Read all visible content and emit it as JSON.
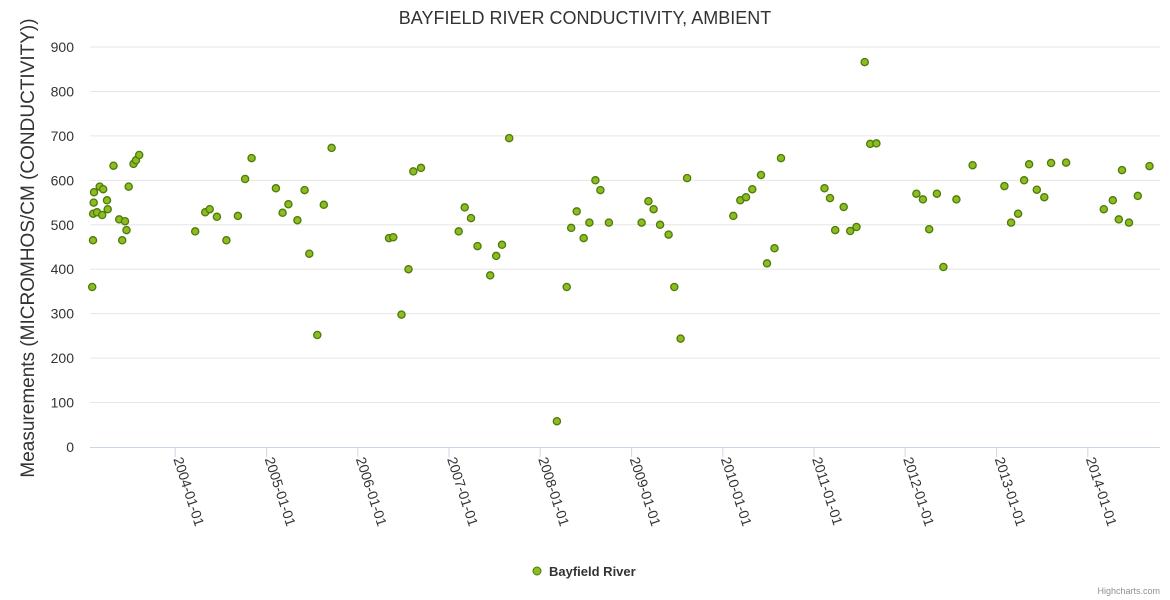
{
  "chart_data": {
    "type": "scatter",
    "title": "BAYFIELD RIVER CONDUCTIVITY, AMBIENT",
    "ylabel": "Measurements (MICROMHOS/CM (CONDUCTIVITY))",
    "xlabel": "",
    "ylim": [
      0,
      900
    ],
    "yticks": [
      0,
      100,
      200,
      300,
      400,
      500,
      600,
      700,
      800,
      900
    ],
    "xlim": [
      "2003-01-25",
      "2014-10-17"
    ],
    "xticks": [
      "2004-01-01",
      "2005-01-01",
      "2006-01-01",
      "2007-01-01",
      "2008-01-01",
      "2009-01-01",
      "2010-01-01",
      "2011-01-01",
      "2012-01-01",
      "2013-01-01",
      "2014-01-01"
    ],
    "grid": "horizontal",
    "legend_position": "bottom-center",
    "marker_color": "#8bbc21",
    "marker_stroke": "#4e7a0a",
    "series": [
      {
        "name": "Bayfield River",
        "points": [
          [
            "2003-02-03",
            360
          ],
          [
            "2003-02-06",
            465
          ],
          [
            "2003-02-07",
            525
          ],
          [
            "2003-02-09",
            550
          ],
          [
            "2003-02-10",
            573
          ],
          [
            "2003-02-22",
            528
          ],
          [
            "2003-03-05",
            586
          ],
          [
            "2003-03-15",
            522
          ],
          [
            "2003-03-19",
            580
          ],
          [
            "2003-04-03",
            555
          ],
          [
            "2003-04-06",
            535
          ],
          [
            "2003-04-29",
            633
          ],
          [
            "2003-05-22",
            512
          ],
          [
            "2003-06-03",
            465
          ],
          [
            "2003-06-14",
            508
          ],
          [
            "2003-06-20",
            488
          ],
          [
            "2003-06-29",
            586
          ],
          [
            "2003-07-18",
            637
          ],
          [
            "2003-07-28",
            645
          ],
          [
            "2003-08-10",
            657
          ],
          [
            "2004-03-21",
            485
          ],
          [
            "2004-04-30",
            528
          ],
          [
            "2004-05-18",
            535
          ],
          [
            "2004-06-16",
            518
          ],
          [
            "2004-07-24",
            465
          ],
          [
            "2004-09-08",
            520
          ],
          [
            "2004-10-07",
            603
          ],
          [
            "2004-11-02",
            650
          ],
          [
            "2005-02-07",
            582
          ],
          [
            "2005-03-06",
            527
          ],
          [
            "2005-03-29",
            546
          ],
          [
            "2005-05-04",
            510
          ],
          [
            "2005-06-02",
            578
          ],
          [
            "2005-06-21",
            435
          ],
          [
            "2005-07-23",
            252
          ],
          [
            "2005-08-18",
            545
          ],
          [
            "2005-09-18",
            673
          ],
          [
            "2006-05-06",
            470
          ],
          [
            "2006-05-23",
            472
          ],
          [
            "2006-06-25",
            298
          ],
          [
            "2006-07-23",
            400
          ],
          [
            "2006-08-11",
            620
          ],
          [
            "2006-09-11",
            628
          ],
          [
            "2007-02-09",
            485
          ],
          [
            "2007-03-05",
            539
          ],
          [
            "2007-03-30",
            515
          ],
          [
            "2007-04-25",
            452
          ],
          [
            "2007-06-15",
            386
          ],
          [
            "2007-07-09",
            430
          ],
          [
            "2007-08-01",
            455
          ],
          [
            "2007-08-30",
            695
          ],
          [
            "2008-03-08",
            58
          ],
          [
            "2008-04-16",
            360
          ],
          [
            "2008-05-04",
            493
          ],
          [
            "2008-05-26",
            530
          ],
          [
            "2008-06-23",
            470
          ],
          [
            "2008-07-16",
            505
          ],
          [
            "2008-08-09",
            600
          ],
          [
            "2008-08-29",
            578
          ],
          [
            "2008-10-02",
            505
          ],
          [
            "2009-02-10",
            505
          ],
          [
            "2009-03-09",
            553
          ],
          [
            "2009-03-30",
            535
          ],
          [
            "2009-04-25",
            500
          ],
          [
            "2009-05-29",
            478
          ],
          [
            "2009-06-21",
            360
          ],
          [
            "2009-07-16",
            244
          ],
          [
            "2009-08-11",
            605
          ],
          [
            "2010-02-12",
            520
          ],
          [
            "2010-03-12",
            555
          ],
          [
            "2010-04-04",
            562
          ],
          [
            "2010-04-29",
            580
          ],
          [
            "2010-06-03",
            612
          ],
          [
            "2010-06-27",
            413
          ],
          [
            "2010-07-27",
            447
          ],
          [
            "2010-08-22",
            650
          ],
          [
            "2011-02-12",
            582
          ],
          [
            "2011-03-06",
            560
          ],
          [
            "2011-03-27",
            488
          ],
          [
            "2011-04-30",
            540
          ],
          [
            "2011-05-26",
            486
          ],
          [
            "2011-06-20",
            495
          ],
          [
            "2011-07-23",
            866
          ],
          [
            "2011-08-14",
            682
          ],
          [
            "2011-09-08",
            683
          ],
          [
            "2012-02-15",
            570
          ],
          [
            "2012-03-12",
            557
          ],
          [
            "2012-04-06",
            490
          ],
          [
            "2012-05-07",
            570
          ],
          [
            "2012-06-02",
            405
          ],
          [
            "2012-07-24",
            557
          ],
          [
            "2012-09-27",
            634
          ],
          [
            "2013-02-01",
            587
          ],
          [
            "2013-02-28",
            505
          ],
          [
            "2013-03-28",
            525
          ],
          [
            "2013-04-21",
            600
          ],
          [
            "2013-05-11",
            636
          ],
          [
            "2013-06-11",
            579
          ],
          [
            "2013-07-11",
            562
          ],
          [
            "2013-08-07",
            639
          ],
          [
            "2013-10-06",
            640
          ],
          [
            "2014-03-06",
            535
          ],
          [
            "2014-04-11",
            555
          ],
          [
            "2014-05-05",
            512
          ],
          [
            "2014-05-18",
            623
          ],
          [
            "2014-06-15",
            505
          ],
          [
            "2014-07-20",
            565
          ],
          [
            "2014-09-05",
            632
          ]
        ]
      }
    ]
  },
  "credit": "Highcharts.com"
}
